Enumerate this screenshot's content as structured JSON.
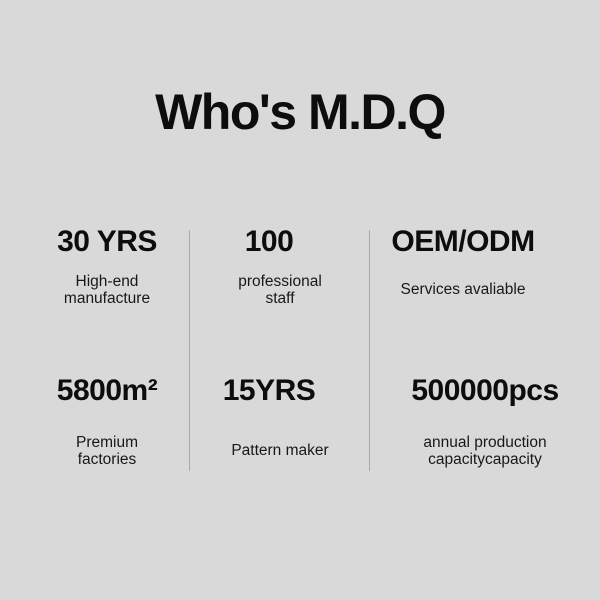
{
  "theme": {
    "background": "#d9d9d9",
    "text_color": "#0d0d0d",
    "caption_color": "#181818",
    "divider_color": "#ababab"
  },
  "header": {
    "title": "Who's M.D.Q"
  },
  "stats": {
    "rows": [
      {
        "cells": [
          {
            "value": "30 YRS",
            "caption": "High-end\nmanufacture"
          },
          {
            "value": "100",
            "caption": "professional\nstaff"
          },
          {
            "value": "OEM/ODM",
            "caption": "Services avaliable"
          }
        ]
      },
      {
        "cells": [
          {
            "value": "5800m²",
            "caption": "Premium\nfactories"
          },
          {
            "value": "15YRS",
            "caption": "Pattern maker"
          },
          {
            "value": "500000pcs",
            "caption": "annual production\ncapacitycapacity"
          }
        ]
      }
    ]
  }
}
